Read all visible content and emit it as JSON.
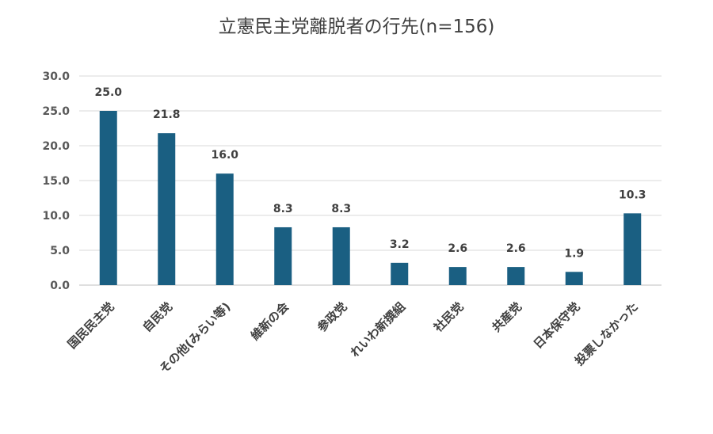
{
  "chart_data": {
    "type": "bar",
    "title": "立憲民主党離脱者の行先(n=156)",
    "categories": [
      "国民民主党",
      "自民党",
      "その他(みらい等)",
      "維新の会",
      "参政党",
      "れいわ新撰組",
      "社民党",
      "共産党",
      "日本保守党",
      "投票しなかった"
    ],
    "values": [
      25.0,
      21.8,
      16.0,
      8.3,
      8.3,
      3.2,
      2.6,
      2.6,
      1.9,
      10.3
    ],
    "value_labels": [
      "25.0",
      "21.8",
      "16.0",
      "8.3",
      "8.3",
      "3.2",
      "2.6",
      "2.6",
      "1.9",
      "10.3"
    ],
    "yticks": [
      "0.0",
      "5.0",
      "10.0",
      "15.0",
      "20.0",
      "25.0",
      "30.0"
    ],
    "ylim": [
      0,
      30
    ],
    "grid": true,
    "legend": "none",
    "colors": {
      "bar": "#1a5f82",
      "grid": "#d9d9d9",
      "axis": "#bfbfbf"
    }
  }
}
